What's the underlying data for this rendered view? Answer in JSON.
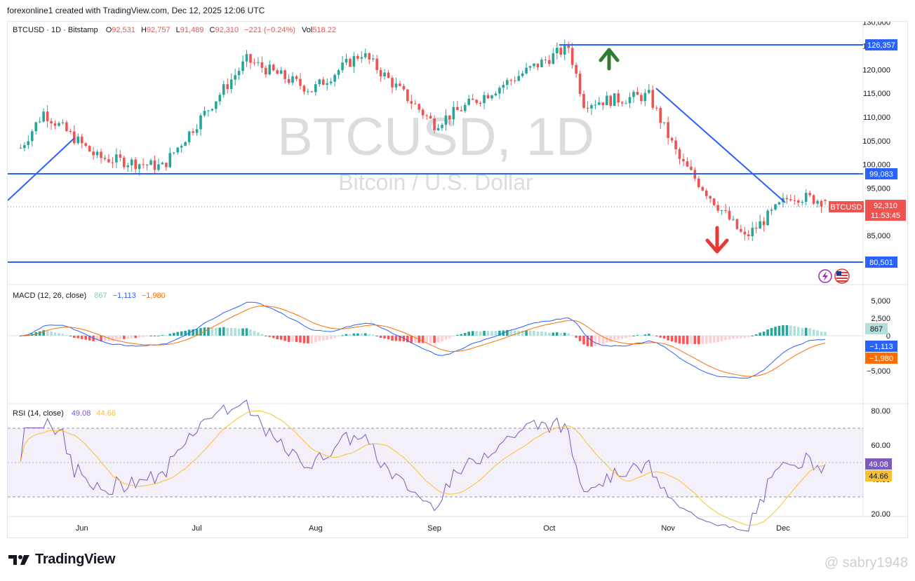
{
  "header": {
    "text": "forexonline1 created with TradingView.com, Dec 12, 2025 12:06 UTC"
  },
  "legend": {
    "symbol": "BTCUSD · 1D · Bitstamp",
    "o_label": "O",
    "o_value": "92,531",
    "h_label": "H",
    "h_value": "92,757",
    "l_label": "L",
    "l_value": "91,489",
    "c_label": "C",
    "c_value": "92,310",
    "change": "−221 (−0.24%)",
    "vol_label": "Vol",
    "vol_value": "518.22"
  },
  "watermark": {
    "title": "BTCUSD, 1D",
    "subtitle": "Bitcoin / U.S. Dollar"
  },
  "macd_legend": {
    "label": "MACD (12, 26, close)",
    "hist": "867",
    "macd": "−1,113",
    "signal": "−1,980"
  },
  "rsi_legend": {
    "label": "RSI (14, close)",
    "rsi": "49.08",
    "ma": "44.66"
  },
  "price_tags": {
    "level_high": "126,357",
    "level_mid": "99,083",
    "level_low": "80,501",
    "symbol": "BTCUSD",
    "last": "92,310",
    "countdown": "11:53:45"
  },
  "macd_tags": {
    "hist": "867",
    "macd": "−1,113",
    "signal": "−1,980"
  },
  "rsi_tags": {
    "rsi": "49.08",
    "ma": "44.66"
  },
  "brand": {
    "name": "TradingView"
  },
  "attribution": "@ sabry1948",
  "colors": {
    "up": "#26a69a",
    "down": "#ef5350",
    "line": "#2962ff",
    "macd": "#2962ff",
    "signal": "#ff6d00",
    "rsi": "#7e57c2",
    "rsi_ma": "#fbc02d",
    "arrow_up": "#2e7d32",
    "arrow_down": "#e53935"
  },
  "chart_data": {
    "type": "candlestick",
    "symbol": "BTCUSD",
    "interval": "1D",
    "exchange": "Bitstamp",
    "x_axis_ticks": [
      "Jun",
      "Jul",
      "Aug",
      "Sep",
      "Oct",
      "Nov",
      "Dec"
    ],
    "price_axis": {
      "ticks": [
        130000,
        125000,
        120000,
        115000,
        110000,
        105000,
        100000,
        95000,
        85000
      ],
      "range": [
        79000,
        130500
      ]
    },
    "ohlc_close_estimates": [
      {
        "date": "2025-05-16",
        "close": 103500
      },
      {
        "date": "2025-05-22",
        "close": 111000
      },
      {
        "date": "2025-06-05",
        "close": 101500
      },
      {
        "date": "2025-06-22",
        "close": 99500
      },
      {
        "date": "2025-07-14",
        "close": 122000
      },
      {
        "date": "2025-07-31",
        "close": 115700
      },
      {
        "date": "2025-08-13",
        "close": 123500
      },
      {
        "date": "2025-09-01",
        "close": 108500
      },
      {
        "date": "2025-10-06",
        "close": 124800
      },
      {
        "date": "2025-10-10",
        "close": 113000
      },
      {
        "date": "2025-10-27",
        "close": 114500
      },
      {
        "date": "2025-11-04",
        "close": 101000
      },
      {
        "date": "2025-11-21",
        "close": 84500
      },
      {
        "date": "2025-12-03",
        "close": 93500
      },
      {
        "date": "2025-12-12",
        "close": 92310
      }
    ],
    "last": {
      "open": 92531,
      "high": 92757,
      "low": 91489,
      "close": 92310,
      "change": -221,
      "change_pct": -0.24,
      "volume": 518.22
    },
    "horizontal_lines": [
      126357,
      99083,
      80501
    ],
    "macd": {
      "params": "12, 26, close",
      "histogram": 867,
      "macd": -1113,
      "signal": -1980,
      "axis_ticks": [
        5000,
        2500,
        0,
        -5000
      ]
    },
    "rsi": {
      "params": "14, close",
      "rsi": 49.08,
      "ma": 44.66,
      "bands": [
        70,
        50,
        30
      ],
      "axis_ticks": [
        80,
        60,
        40,
        20
      ]
    }
  }
}
